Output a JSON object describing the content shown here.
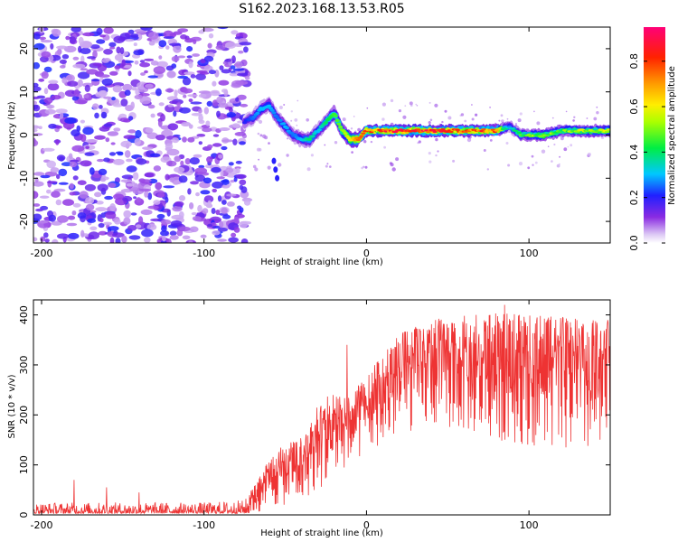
{
  "title": "S162.2023.168.13.53.R05",
  "chart_data": [
    {
      "type": "heatmap",
      "xlabel": "Height of straight line (km)",
      "ylabel": "Frequency (Hz)",
      "xlim": [
        -205,
        150
      ],
      "ylim": [
        -25,
        25
      ],
      "x_ticks": [
        -200,
        -100,
        0,
        100
      ],
      "y_ticks": [
        -20,
        -10,
        0,
        10,
        20
      ],
      "colorbar": {
        "label": "Normalized spectral amplitude",
        "range": [
          0,
          0.95
        ],
        "ticks": [
          0.0,
          0.2,
          0.4,
          0.6,
          0.8
        ],
        "colormap": "rainbow (white-violet-blue-cyan-green-yellow-red-magenta)"
      },
      "ridge": {
        "x": [
          -75,
          -70,
          -65,
          -60,
          -55,
          -50,
          -45,
          -40,
          -35,
          -30,
          -25,
          -20,
          -15,
          -10,
          -5,
          0,
          20,
          40,
          60,
          80,
          88,
          95,
          110,
          120,
          130,
          150
        ],
        "freq": [
          3,
          4,
          6,
          7,
          4,
          2,
          0,
          -1,
          -1,
          1,
          3,
          5,
          1,
          -1,
          -1,
          1,
          1,
          1,
          1,
          1,
          2,
          0,
          0,
          1,
          1,
          1
        ],
        "amplitude": [
          0.2,
          0.25,
          0.3,
          0.3,
          0.25,
          0.3,
          0.25,
          0.3,
          0.4,
          0.3,
          0.4,
          0.45,
          0.5,
          0.6,
          0.75,
          0.8,
          0.9,
          0.9,
          0.85,
          0.8,
          0.3,
          0.5,
          0.6,
          0.5,
          0.6,
          0.6
        ]
      },
      "noise_region_x": [
        -205,
        -73
      ]
    },
    {
      "type": "line",
      "xlabel": "Height of straight line (km)",
      "ylabel": "SNR (10 * v/v)",
      "xlim": [
        -205,
        150
      ],
      "ylim": [
        0,
        430
      ],
      "x_ticks": [
        -200,
        -100,
        0,
        100
      ],
      "y_ticks": [
        0,
        100,
        200,
        300,
        400
      ],
      "color": "#ee3333",
      "envelope": {
        "x": [
          -205,
          -150,
          -100,
          -75,
          -65,
          -60,
          -55,
          -50,
          -45,
          -40,
          -35,
          -30,
          -25,
          -20,
          -15,
          -10,
          -5,
          0,
          10,
          20,
          30,
          40,
          60,
          80,
          100,
          120,
          150
        ],
        "floor": [
          3,
          3,
          3,
          3,
          5,
          15,
          20,
          20,
          25,
          30,
          40,
          50,
          60,
          80,
          90,
          100,
          110,
          130,
          140,
          160,
          170,
          180,
          170,
          150,
          140,
          130,
          120
        ],
        "ceiling": [
          25,
          25,
          25,
          30,
          80,
          110,
          130,
          140,
          150,
          160,
          180,
          220,
          240,
          240,
          250,
          230,
          260,
          280,
          320,
          360,
          380,
          390,
          400,
          405,
          400,
          395,
          390
        ]
      },
      "spikes": [
        {
          "x": -180,
          "y": 70
        },
        {
          "x": -160,
          "y": 55
        },
        {
          "x": -140,
          "y": 45
        },
        {
          "x": -20,
          "y": 210
        },
        {
          "x": -12,
          "y": 340
        },
        {
          "x": 85,
          "y": 420
        }
      ]
    }
  ]
}
